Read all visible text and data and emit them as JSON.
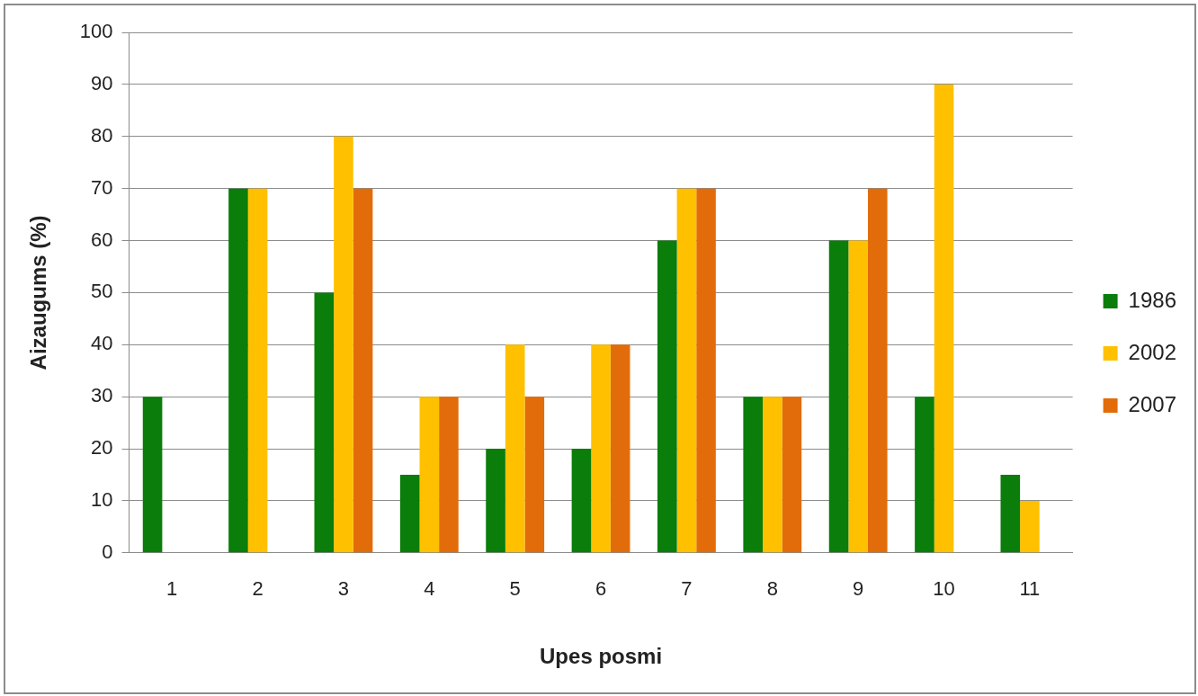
{
  "chart_data": {
    "type": "bar",
    "xlabel": "Upes posmi",
    "ylabel": "Aizaugums (%)",
    "categories": [
      "1",
      "2",
      "3",
      "4",
      "5",
      "6",
      "7",
      "8",
      "9",
      "10",
      "11"
    ],
    "series": [
      {
        "name": "1986",
        "color": "#0a7d0a",
        "values": [
          30,
          70,
          50,
          15,
          20,
          20,
          60,
          30,
          60,
          30,
          15
        ]
      },
      {
        "name": "2002",
        "color": "#ffc000",
        "values": [
          null,
          70,
          80,
          30,
          40,
          40,
          70,
          30,
          60,
          90,
          10
        ]
      },
      {
        "name": "2007",
        "color": "#e36c0a",
        "values": [
          null,
          null,
          70,
          30,
          30,
          40,
          70,
          30,
          70,
          null,
          null
        ]
      }
    ],
    "ylim": [
      0,
      100
    ],
    "yticks": [
      0,
      10,
      20,
      30,
      40,
      50,
      60,
      70,
      80,
      90,
      100
    ],
    "grid": "y",
    "legend": "right"
  }
}
